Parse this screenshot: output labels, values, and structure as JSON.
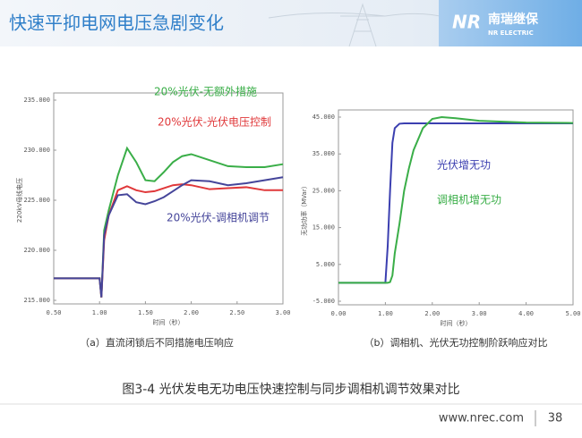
{
  "header": {
    "title": "快速平抑电网电压急剧变化",
    "logo_mark": "NR",
    "logo_main": "南瑞继保",
    "logo_sub": "NR ELECTRIC"
  },
  "chart_data": [
    {
      "type": "line",
      "caption": "（a）直流闭锁后不同措施电压响应",
      "x_label": "时间（秒）",
      "y_label": "220kV母线电压",
      "x": [
        0.5,
        1.0,
        1.02,
        1.05,
        1.1,
        1.2,
        1.3,
        1.4,
        1.5,
        1.6,
        1.7,
        1.8,
        1.9,
        2.0,
        2.2,
        2.4,
        2.6,
        2.8,
        3.0
      ],
      "series": [
        {
          "name": "20%光伏-无额外措施",
          "color": "#3aae48",
          "values": [
            217.2,
            217.2,
            215.3,
            222,
            224,
            227.5,
            230.2,
            228.8,
            227,
            226.9,
            227.8,
            228.8,
            229.4,
            229.6,
            229,
            228.4,
            228.3,
            228.3,
            228.6
          ]
        },
        {
          "name": "20%光伏-光伏电压控制",
          "color": "#e0383a",
          "values": [
            217.2,
            217.2,
            215.3,
            221,
            223.5,
            226,
            226.4,
            226,
            225.8,
            225.9,
            226.2,
            226.5,
            226.6,
            226.5,
            226.1,
            226.2,
            226.3,
            226,
            226
          ]
        },
        {
          "name": "20%光伏-调相机调节",
          "color": "#45459a",
          "values": [
            217.2,
            217.2,
            215.3,
            221.5,
            223.5,
            225.5,
            225.6,
            224.8,
            224.6,
            224.9,
            225.3,
            225.9,
            226.5,
            227,
            226.9,
            226.5,
            226.7,
            227,
            227.3
          ]
        }
      ],
      "xlim": [
        0.5,
        3.0
      ],
      "xticks": [
        {
          "value": 0.5,
          "label": "0.50"
        },
        {
          "value": 1.0,
          "label": "1.00"
        },
        {
          "value": 1.5,
          "label": "1.50"
        },
        {
          "value": 2.0,
          "label": "2.00"
        },
        {
          "value": 2.5,
          "label": "2.50"
        },
        {
          "value": 3.0,
          "label": "3.00"
        }
      ],
      "ylim": [
        215,
        235
      ],
      "yticks": [
        {
          "value": 215,
          "label": "215.000"
        },
        {
          "value": 220,
          "label": "220.000"
        },
        {
          "value": 225,
          "label": "225.000"
        },
        {
          "value": 230,
          "label": "230.000"
        },
        {
          "value": 235,
          "label": "235.000"
        }
      ]
    },
    {
      "type": "line",
      "caption": "（b）调相机、光伏无功控制阶跃响应对比",
      "x_label": "时间（秒）",
      "y_label": "无功功率（MVar）",
      "x": [
        0,
        1.0,
        1.05,
        1.1,
        1.15,
        1.2,
        1.3,
        1.4,
        1.5,
        1.6,
        1.8,
        2.0,
        2.2,
        2.5,
        3.0,
        4.0,
        5.0
      ],
      "series": [
        {
          "name": "光伏增无功",
          "color": "#3b3fb0",
          "values": [
            0,
            0,
            10,
            25,
            38,
            42,
            43.2,
            43.3,
            43.3,
            43.3,
            43.3,
            43.3,
            43.3,
            43.3,
            43.3,
            43.3,
            43.3
          ]
        },
        {
          "name": "调相机增无功",
          "color": "#3aae48",
          "values": [
            0,
            0,
            0,
            0.2,
            2,
            8,
            16,
            25,
            31,
            36,
            42,
            44.5,
            45,
            44.7,
            44,
            43.5,
            43.4
          ]
        }
      ],
      "xlim": [
        0,
        5
      ],
      "xticks": [
        {
          "value": 0,
          "label": "0.00"
        },
        {
          "value": 1,
          "label": "1.00"
        },
        {
          "value": 2,
          "label": "2.00"
        },
        {
          "value": 3,
          "label": "3.00"
        },
        {
          "value": 4,
          "label": "4.00"
        },
        {
          "value": 5,
          "label": "5.00"
        }
      ],
      "ylim": [
        -5,
        45
      ],
      "yticks": [
        {
          "value": -5,
          "label": "-5.000"
        },
        {
          "value": 5,
          "label": "5.000"
        },
        {
          "value": 15,
          "label": "15.000"
        },
        {
          "value": 25,
          "label": "25.000"
        },
        {
          "value": 35,
          "label": "35.000"
        },
        {
          "value": 45,
          "label": "45.000"
        }
      ]
    }
  ],
  "caption": "图3-4 光伏发电无功电压快速控制与同步调相机调节效果对比",
  "footer": {
    "url": "www.nrec.com",
    "page": "38"
  }
}
